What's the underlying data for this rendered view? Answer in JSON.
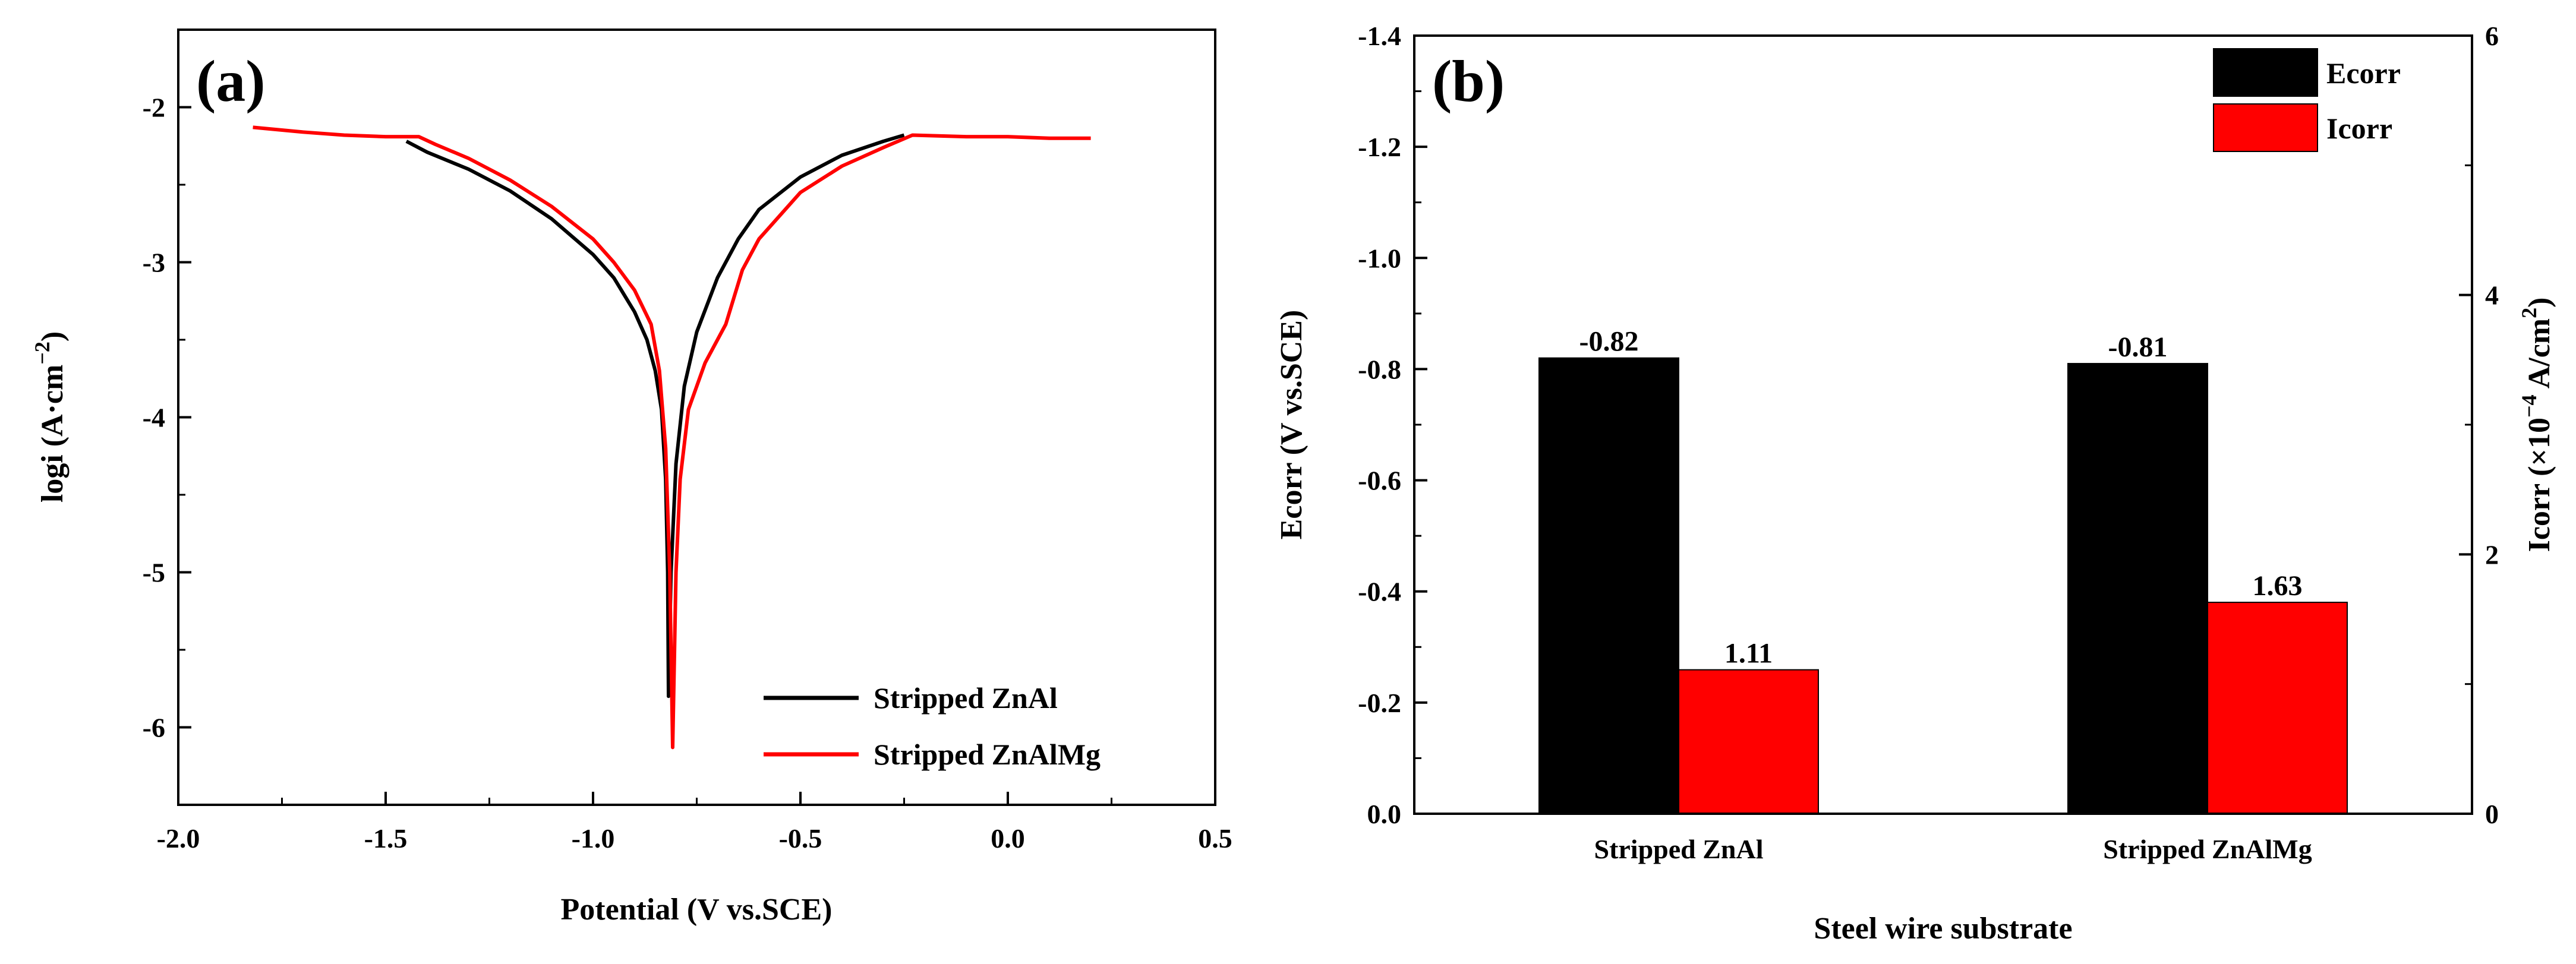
{
  "colors": {
    "zn_al": "#000000",
    "zn_al_mg": "#ff0000",
    "frame": "#000000"
  },
  "chart_data": [
    {
      "panel": "(a)",
      "type": "line",
      "xlabel": "Potential (V vs.SCE)",
      "ylabel": "logi (A·cm",
      "ylabel_sup": "−2",
      "ylabel_end": ")",
      "xlim": [
        -2.0,
        0.5
      ],
      "ylim": [
        -6.5,
        -1.5
      ],
      "x_ticks": [
        -2.0,
        -1.5,
        -1.0,
        -0.5,
        0.0,
        0.5
      ],
      "x_tick_labels": [
        "-2.0",
        "-1.5",
        "-1.0",
        "-0.5",
        "0.0",
        "0.5"
      ],
      "y_ticks": [
        -6,
        -5,
        -4,
        -3,
        -2
      ],
      "y_tick_labels": [
        "-6",
        "-5",
        "-4",
        "-3",
        "-2"
      ],
      "legend_position": "bottom-right",
      "series": [
        {
          "name": "Stripped ZnAl",
          "color": "#000000",
          "points": [
            [
              -1.45,
              -2.22
            ],
            [
              -1.4,
              -2.29
            ],
            [
              -1.3,
              -2.4
            ],
            [
              -1.2,
              -2.54
            ],
            [
              -1.1,
              -2.72
            ],
            [
              -1.0,
              -2.95
            ],
            [
              -0.95,
              -3.1
            ],
            [
              -0.9,
              -3.32
            ],
            [
              -0.87,
              -3.5
            ],
            [
              -0.85,
              -3.7
            ],
            [
              -0.835,
              -3.95
            ],
            [
              -0.825,
              -4.4
            ],
            [
              -0.82,
              -5.0
            ],
            [
              -0.818,
              -5.8
            ],
            [
              -0.812,
              -5.0
            ],
            [
              -0.8,
              -4.3
            ],
            [
              -0.78,
              -3.8
            ],
            [
              -0.75,
              -3.45
            ],
            [
              -0.7,
              -3.1
            ],
            [
              -0.65,
              -2.85
            ],
            [
              -0.6,
              -2.66
            ],
            [
              -0.5,
              -2.45
            ],
            [
              -0.4,
              -2.31
            ],
            [
              -0.3,
              -2.22
            ],
            [
              -0.25,
              -2.18
            ]
          ]
        },
        {
          "name": "Stripped ZnAlMg",
          "color": "#ff0000",
          "points": [
            [
              -1.82,
              -2.13
            ],
            [
              -1.7,
              -2.16
            ],
            [
              -1.6,
              -2.18
            ],
            [
              -1.5,
              -2.19
            ],
            [
              -1.42,
              -2.19
            ],
            [
              -1.38,
              -2.24
            ],
            [
              -1.3,
              -2.33
            ],
            [
              -1.2,
              -2.47
            ],
            [
              -1.1,
              -2.64
            ],
            [
              -1.0,
              -2.85
            ],
            [
              -0.95,
              -3.0
            ],
            [
              -0.9,
              -3.18
            ],
            [
              -0.86,
              -3.4
            ],
            [
              -0.84,
              -3.7
            ],
            [
              -0.825,
              -4.2
            ],
            [
              -0.815,
              -5.0
            ],
            [
              -0.808,
              -6.13
            ],
            [
              -0.8,
              -5.0
            ],
            [
              -0.79,
              -4.4
            ],
            [
              -0.77,
              -3.95
            ],
            [
              -0.73,
              -3.65
            ],
            [
              -0.68,
              -3.4
            ],
            [
              -0.64,
              -3.05
            ],
            [
              -0.6,
              -2.85
            ],
            [
              -0.5,
              -2.55
            ],
            [
              -0.4,
              -2.38
            ],
            [
              -0.3,
              -2.26
            ],
            [
              -0.23,
              -2.18
            ],
            [
              -0.1,
              -2.19
            ],
            [
              0.0,
              -2.19
            ],
            [
              0.1,
              -2.2
            ],
            [
              0.2,
              -2.2
            ]
          ]
        }
      ]
    },
    {
      "panel": "(b)",
      "type": "bar",
      "xlabel": "Steel wire substrate",
      "ylabel": "Ecorr (V vs.SCE)",
      "y2label": "Icorr (×10",
      "y2label_sup": "−4",
      "y2label_end": " A/cm",
      "y2label_sup2": "2",
      "y2label_close": ")",
      "categories": [
        "Stripped ZnAl",
        "Stripped ZnAlMg"
      ],
      "ylim": [
        0.0,
        -1.4
      ],
      "y_ticks": [
        0.0,
        -0.2,
        -0.4,
        -0.6,
        -0.8,
        -1.0,
        -1.2,
        -1.4
      ],
      "y_tick_labels": [
        "0.0",
        "-0.2",
        "-0.4",
        "-0.6",
        "-0.8",
        "-1.0",
        "-1.2",
        "-1.4"
      ],
      "y2lim": [
        0,
        6
      ],
      "y2_ticks": [
        0,
        2,
        4,
        6
      ],
      "y2_tick_labels": [
        "0",
        "2",
        "4",
        "6"
      ],
      "legend_position": "top-right",
      "series": [
        {
          "name": "Ecorr",
          "axis": "left",
          "color": "#000000",
          "values": [
            -0.82,
            -0.81
          ],
          "labels": [
            "-0.82",
            "-0.81"
          ]
        },
        {
          "name": "Icorr",
          "axis": "right",
          "color": "#ff0000",
          "values": [
            1.11,
            1.63
          ],
          "labels": [
            "1.11",
            "1.63"
          ]
        }
      ]
    }
  ]
}
